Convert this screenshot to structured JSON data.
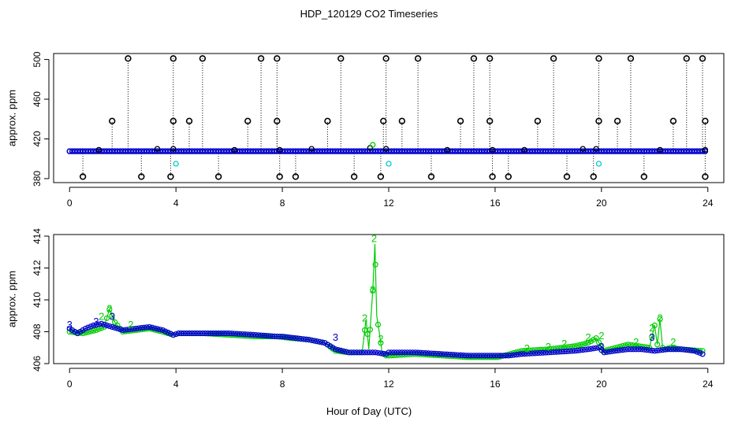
{
  "figure": {
    "title": "HDP_120129  CO2 Timeseries",
    "xlabel": "Hour of Day (UTC)"
  },
  "colors": {
    "axis": "#000000",
    "series_green": "#00cc00",
    "series_blue": "#0000cc",
    "series_cyan": "#00cccc",
    "series_black": "#000000"
  },
  "chart_data": [
    {
      "type": "scatter",
      "name": "top-panel",
      "ylabel": "approx. ppm",
      "xlim": [
        -0.6,
        24.6
      ],
      "ylim": [
        376,
        506
      ],
      "xticks": [
        0,
        4,
        8,
        12,
        16,
        20,
        24
      ],
      "yticks": [
        380,
        420,
        460,
        500
      ],
      "baseline": {
        "from": 0,
        "to": 23.9,
        "step": 0.1,
        "value": 407.6
      },
      "spikes_high": [
        {
          "x": 2.2,
          "y": 501
        },
        {
          "x": 3.9,
          "y": 501
        },
        {
          "x": 5.0,
          "y": 501
        },
        {
          "x": 7.2,
          "y": 501
        },
        {
          "x": 7.8,
          "y": 501
        },
        {
          "x": 10.2,
          "y": 501
        },
        {
          "x": 11.9,
          "y": 501
        },
        {
          "x": 13.1,
          "y": 501
        },
        {
          "x": 15.2,
          "y": 501
        },
        {
          "x": 15.8,
          "y": 501
        },
        {
          "x": 18.2,
          "y": 501
        },
        {
          "x": 19.9,
          "y": 501
        },
        {
          "x": 21.1,
          "y": 501
        },
        {
          "x": 23.2,
          "y": 501
        },
        {
          "x": 23.8,
          "y": 501
        }
      ],
      "spikes_mid": [
        {
          "x": 1.6,
          "y": 438
        },
        {
          "x": 3.9,
          "y": 438
        },
        {
          "x": 4.5,
          "y": 438
        },
        {
          "x": 6.7,
          "y": 438
        },
        {
          "x": 7.8,
          "y": 438
        },
        {
          "x": 9.7,
          "y": 438
        },
        {
          "x": 11.8,
          "y": 438
        },
        {
          "x": 12.5,
          "y": 438
        },
        {
          "x": 14.7,
          "y": 438
        },
        {
          "x": 15.8,
          "y": 438
        },
        {
          "x": 17.6,
          "y": 438
        },
        {
          "x": 19.9,
          "y": 438
        },
        {
          "x": 20.6,
          "y": 438
        },
        {
          "x": 22.7,
          "y": 438
        },
        {
          "x": 23.9,
          "y": 438
        }
      ],
      "spikes_low": [
        {
          "x": 0.5,
          "y": 382
        },
        {
          "x": 2.7,
          "y": 382
        },
        {
          "x": 3.8,
          "y": 382
        },
        {
          "x": 5.6,
          "y": 382
        },
        {
          "x": 7.9,
          "y": 382
        },
        {
          "x": 8.5,
          "y": 382
        },
        {
          "x": 10.7,
          "y": 382
        },
        {
          "x": 11.7,
          "y": 382
        },
        {
          "x": 13.6,
          "y": 382
        },
        {
          "x": 15.9,
          "y": 382
        },
        {
          "x": 16.5,
          "y": 382
        },
        {
          "x": 18.7,
          "y": 382
        },
        {
          "x": 19.7,
          "y": 382
        },
        {
          "x": 21.6,
          "y": 382
        },
        {
          "x": 23.9,
          "y": 382
        }
      ],
      "bumps": [
        {
          "x": 1.1,
          "y": 409
        },
        {
          "x": 3.3,
          "y": 410
        },
        {
          "x": 3.9,
          "y": 410
        },
        {
          "x": 6.2,
          "y": 409
        },
        {
          "x": 7.9,
          "y": 409
        },
        {
          "x": 9.1,
          "y": 410
        },
        {
          "x": 11.3,
          "y": 411
        },
        {
          "x": 11.9,
          "y": 410
        },
        {
          "x": 14.2,
          "y": 409
        },
        {
          "x": 15.9,
          "y": 409
        },
        {
          "x": 17.1,
          "y": 409
        },
        {
          "x": 19.3,
          "y": 410
        },
        {
          "x": 19.8,
          "y": 410
        },
        {
          "x": 22.2,
          "y": 409
        },
        {
          "x": 23.9,
          "y": 409
        }
      ],
      "green_extra": [
        {
          "x": 11.4,
          "y": 414
        }
      ],
      "cyan_points": [
        {
          "x": 4.0,
          "y": 395
        },
        {
          "x": 12.0,
          "y": 395
        },
        {
          "x": 19.9,
          "y": 395
        }
      ]
    },
    {
      "type": "line",
      "name": "bottom-panel",
      "ylabel": "approx. ppm",
      "xlim": [
        -0.6,
        24.6
      ],
      "ylim": [
        406,
        414.1
      ],
      "xticks": [
        0,
        4,
        8,
        12,
        16,
        20,
        24
      ],
      "yticks": [
        406,
        408,
        410,
        412,
        414
      ],
      "series": [
        {
          "name": "2",
          "x": [
            0.0,
            0.5,
            1.0,
            1.3,
            1.5,
            1.7,
            2.0,
            2.5,
            3.0,
            3.5,
            3.9,
            4.1,
            5.0,
            6.0,
            7.0,
            7.8,
            8.3,
            9.0,
            9.6,
            10.0,
            10.5,
            11.0,
            11.15,
            11.25,
            11.4,
            11.48,
            11.55,
            11.65,
            11.75,
            11.85,
            12.0,
            13.0,
            14.0,
            15.0,
            15.8,
            16.1,
            17.0,
            18.0,
            19.0,
            19.5,
            19.8,
            20.1,
            21.0,
            21.8,
            22.0,
            22.1,
            22.2,
            22.3,
            22.4,
            22.6,
            23.0,
            23.8
          ],
          "y": [
            408.0,
            407.9,
            408.1,
            408.3,
            409.4,
            408.6,
            408.0,
            408.1,
            408.2,
            408.0,
            407.8,
            407.9,
            407.9,
            407.8,
            407.7,
            407.7,
            407.6,
            407.5,
            407.3,
            406.8,
            406.7,
            406.7,
            408.8,
            406.9,
            410.6,
            413.5,
            409.0,
            407.9,
            406.7,
            406.5,
            406.5,
            406.6,
            406.5,
            406.4,
            406.4,
            406.4,
            406.8,
            406.9,
            407.1,
            407.3,
            407.6,
            406.8,
            407.2,
            407.0,
            408.4,
            407.2,
            408.8,
            407.0,
            406.9,
            407.0,
            406.9,
            406.8
          ]
        },
        {
          "name": "3",
          "x": [
            0.0,
            0.3,
            0.6,
            0.9,
            1.2,
            1.6,
            2.0,
            2.5,
            3.0,
            3.5,
            3.9,
            4.1,
            5.0,
            6.0,
            7.0,
            7.8,
            8.0,
            8.5,
            9.0,
            9.6,
            10.0,
            10.5,
            11.0,
            11.5,
            11.9,
            12.0,
            13.0,
            14.0,
            15.0,
            15.8,
            16.1,
            16.5,
            17.0,
            18.0,
            19.0,
            19.5,
            19.9,
            20.1,
            20.5,
            21.0,
            21.5,
            22.0,
            22.5,
            23.0,
            23.5,
            23.8
          ],
          "y": [
            408.2,
            407.9,
            408.2,
            408.4,
            408.5,
            408.3,
            408.1,
            408.2,
            408.3,
            408.1,
            407.8,
            407.9,
            407.9,
            407.9,
            407.8,
            407.7,
            407.7,
            407.6,
            407.5,
            407.3,
            406.9,
            406.7,
            406.7,
            406.7,
            406.6,
            406.7,
            406.7,
            406.6,
            406.5,
            406.5,
            406.5,
            406.5,
            406.6,
            406.7,
            406.8,
            406.9,
            407.0,
            406.7,
            406.8,
            406.9,
            406.9,
            406.8,
            406.9,
            406.9,
            406.8,
            406.6
          ]
        }
      ],
      "labels": [
        {
          "text": "2",
          "x": 1.5,
          "y": 409.4,
          "series": "2"
        },
        {
          "text": "2",
          "x": 1.2,
          "y": 408.9,
          "series": "2"
        },
        {
          "text": "2",
          "x": 2.3,
          "y": 408.4,
          "series": "2"
        },
        {
          "text": "2",
          "x": 11.1,
          "y": 408.8,
          "series": "2"
        },
        {
          "text": "2",
          "x": 11.45,
          "y": 413.8,
          "series": "2"
        },
        {
          "text": "2",
          "x": 11.4,
          "y": 410.6,
          "series": "2"
        },
        {
          "text": "2",
          "x": 11.7,
          "y": 407.5,
          "series": "2"
        },
        {
          "text": "2",
          "x": 17.2,
          "y": 406.9,
          "series": "2"
        },
        {
          "text": "2",
          "x": 18.0,
          "y": 407.0,
          "series": "2"
        },
        {
          "text": "2",
          "x": 18.6,
          "y": 407.2,
          "series": "2"
        },
        {
          "text": "2",
          "x": 19.5,
          "y": 407.6,
          "series": "2"
        },
        {
          "text": "2",
          "x": 20.0,
          "y": 407.7,
          "series": "2"
        },
        {
          "text": "2",
          "x": 21.3,
          "y": 407.3,
          "series": "2"
        },
        {
          "text": "2",
          "x": 21.9,
          "y": 408.2,
          "series": "2"
        },
        {
          "text": "2",
          "x": 22.2,
          "y": 408.8,
          "series": "2"
        },
        {
          "text": "2",
          "x": 22.7,
          "y": 407.3,
          "series": "2"
        },
        {
          "text": "3",
          "x": 0.0,
          "y": 408.4,
          "series": "3"
        },
        {
          "text": "3",
          "x": 1.6,
          "y": 408.9,
          "series": "3"
        },
        {
          "text": "3",
          "x": 1.0,
          "y": 408.6,
          "series": "3"
        },
        {
          "text": "3",
          "x": 10.0,
          "y": 407.6,
          "series": "3"
        },
        {
          "text": "3",
          "x": 20.0,
          "y": 407.0,
          "series": "3"
        },
        {
          "text": "3",
          "x": 21.9,
          "y": 407.6,
          "series": "3"
        }
      ]
    }
  ]
}
